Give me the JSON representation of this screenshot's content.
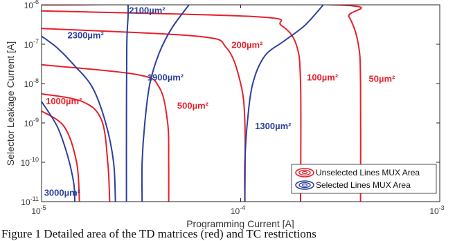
{
  "chart_data": {
    "type": "line",
    "xlabel": "Programming Current [A]",
    "ylabel": "Selector Leakage Current [A]",
    "xscale": "log",
    "yscale": "log",
    "xlim": [
      1e-05,
      0.001
    ],
    "ylim": [
      1e-11,
      1e-06
    ],
    "grid": false,
    "legend_position": "bottom-right",
    "x_ticks": [
      {
        "value": 1e-05,
        "base": "10",
        "exp": "-5"
      },
      {
        "value": 0.0001,
        "base": "10",
        "exp": "-4"
      },
      {
        "value": 0.001,
        "base": "10",
        "exp": "-3"
      }
    ],
    "y_ticks": [
      {
        "value": 1e-11,
        "base": "10",
        "exp": "-11"
      },
      {
        "value": 1e-10,
        "base": "10",
        "exp": "-10"
      },
      {
        "value": 1e-09,
        "base": "10",
        "exp": "-9"
      },
      {
        "value": 1e-08,
        "base": "10",
        "exp": "-8"
      },
      {
        "value": 1e-07,
        "base": "10",
        "exp": "-7"
      },
      {
        "value": 1e-06,
        "base": "10",
        "exp": "-6"
      }
    ],
    "legend": [
      {
        "label": "Unselected Lines MUX Area",
        "color": "#e8202a"
      },
      {
        "label": "Selected Lines MUX Area",
        "color": "#2a3f9f"
      }
    ],
    "series": [
      {
        "group": "Unselected Lines MUX Area",
        "label": "50µm²",
        "color": "#e8202a",
        "points": [
          [
            1e-05,
            1e-06
          ],
          [
            0.0003,
            1e-06
          ],
          [
            0.00035,
            5e-07
          ],
          [
            0.00039,
            1e-07
          ],
          [
            0.0004,
            1e-08
          ],
          [
            0.0004,
            1e-11
          ]
        ]
      },
      {
        "group": "Unselected Lines MUX Area",
        "label": "100µm²",
        "color": "#e8202a",
        "points": [
          [
            1e-05,
            7e-07
          ],
          [
            0.00012,
            5e-07
          ],
          [
            0.00016,
            3e-07
          ],
          [
            0.00019,
            1e-07
          ],
          [
            0.0002,
            1e-08
          ],
          [
            0.0002,
            1e-11
          ]
        ]
      },
      {
        "group": "Unselected Lines MUX Area",
        "label": "200µm²",
        "color": "#e8202a",
        "points": [
          [
            1e-05,
            2.5e-07
          ],
          [
            6e-05,
            1.6e-07
          ],
          [
            8.5e-05,
            8e-08
          ],
          [
            0.0001,
            1e-08
          ],
          [
            0.000105,
            1e-09
          ],
          [
            0.000105,
            1e-11
          ]
        ]
      },
      {
        "group": "Unselected Lines MUX Area",
        "label": "500µm²",
        "color": "#e8202a",
        "points": [
          [
            1e-05,
            3e-08
          ],
          [
            3e-05,
            1.7e-08
          ],
          [
            3.9e-05,
            8e-09
          ],
          [
            4.3e-05,
            1e-09
          ],
          [
            4.35e-05,
            1e-10
          ],
          [
            4.35e-05,
            1e-11
          ]
        ]
      },
      {
        "group": "Unselected Lines MUX Area",
        "label": "1000µm²",
        "color": "#e8202a",
        "points": [
          [
            1e-05,
            5.5e-09
          ],
          [
            1.6e-05,
            3.5e-09
          ],
          [
            2e-05,
            1.2e-09
          ],
          [
            2.15e-05,
            1e-10
          ],
          [
            2.2e-05,
            1e-11
          ]
        ]
      },
      {
        "group": "Unselected Lines MUX Area",
        "label": "",
        "color": "#e8202a",
        "points": [
          [
            1e-05,
            2e-09
          ],
          [
            1.3e-05,
            8e-10
          ],
          [
            1.5e-05,
            1e-10
          ],
          [
            1.55e-05,
            1e-11
          ]
        ]
      },
      {
        "group": "Selected Lines MUX Area",
        "label": "1300µm²",
        "color": "#2a3f9f",
        "points": [
          [
            0.000105,
            1e-11
          ],
          [
            0.000105,
            1e-10
          ],
          [
            0.000108,
            1e-09
          ],
          [
            0.000115,
            1e-08
          ],
          [
            0.000132,
            5e-08
          ],
          [
            0.000165,
            1.2e-07
          ],
          [
            0.00021,
            3e-07
          ],
          [
            0.00026,
            1e-06
          ]
        ]
      },
      {
        "group": "Selected Lines MUX Area",
        "label": "1900µm²",
        "color": "#2a3f9f",
        "points": [
          [
            3.2e-05,
            1e-11
          ],
          [
            3.2e-05,
            1e-10
          ],
          [
            3.3e-05,
            1e-09
          ],
          [
            3.5e-05,
            1e-08
          ],
          [
            3.9e-05,
            6e-08
          ],
          [
            4.5e-05,
            2.5e-07
          ],
          [
            5.5e-05,
            1e-06
          ]
        ]
      },
      {
        "group": "Selected Lines MUX Area",
        "label": "2100µm²",
        "color": "#2a3f9f",
        "points": [
          [
            2.67e-05,
            1e-11
          ],
          [
            2.67e-05,
            1e-09
          ],
          [
            2.68e-05,
            1e-07
          ],
          [
            2.72e-05,
            5e-07
          ],
          [
            2.72e-05,
            1e-06
          ]
        ]
      },
      {
        "group": "Selected Lines MUX Area",
        "label": "2300µm²",
        "color": "#2a3f9f",
        "points": [
          [
            1e-05,
            1.6e-07
          ],
          [
            1.2e-05,
            8e-08
          ],
          [
            1.45e-05,
            3e-08
          ],
          [
            1.8e-05,
            8e-09
          ],
          [
            2.1e-05,
            1e-09
          ],
          [
            2.3e-05,
            1e-10
          ],
          [
            2.35e-05,
            1e-11
          ]
        ]
      },
      {
        "group": "Selected Lines MUX Area",
        "label": "3000µm²",
        "color": "#2a3f9f",
        "points": [
          [
            1e-05,
            3.5e-09
          ],
          [
            1.2e-05,
            8e-10
          ],
          [
            1.35e-05,
            1.5e-10
          ],
          [
            1.45e-05,
            3e-11
          ],
          [
            1.47e-05,
            1e-11
          ]
        ]
      }
    ],
    "annotations": [
      {
        "text": "50µm²",
        "x": 0.00044,
        "y": 1.1e-08,
        "color": "#e8202a"
      },
      {
        "text": "100µm²",
        "x": 0.000215,
        "y": 1.2e-08,
        "color": "#e8202a"
      },
      {
        "text": "200µm²",
        "x": 9e-05,
        "y": 8e-08,
        "color": "#e8202a"
      },
      {
        "text": "500µm²",
        "x": 4.8e-05,
        "y": 2.3e-09,
        "color": "#e8202a"
      },
      {
        "text": "1000µm²",
        "x": 1.05e-05,
        "y": 3e-09,
        "color": "#e8202a"
      },
      {
        "text": "1300µm²",
        "x": 0.000118,
        "y": 7e-10,
        "color": "#2a3f9f"
      },
      {
        "text": "1900µm²",
        "x": 3.4e-05,
        "y": 1.2e-08,
        "color": "#2a3f9f"
      },
      {
        "text": "2100µm²",
        "x": 2.75e-05,
        "y": 6e-07,
        "color": "#2a3f9f"
      },
      {
        "text": "2300µm²",
        "x": 1.35e-05,
        "y": 1.4e-07,
        "color": "#2a3f9f"
      },
      {
        "text": "3000µm²",
        "x": 1.03e-05,
        "y": 1.4e-11,
        "color": "#2a3f9f"
      }
    ]
  },
  "caption": "Figure 1 Detailed area of the TD matrices (red) and TC restrictions"
}
